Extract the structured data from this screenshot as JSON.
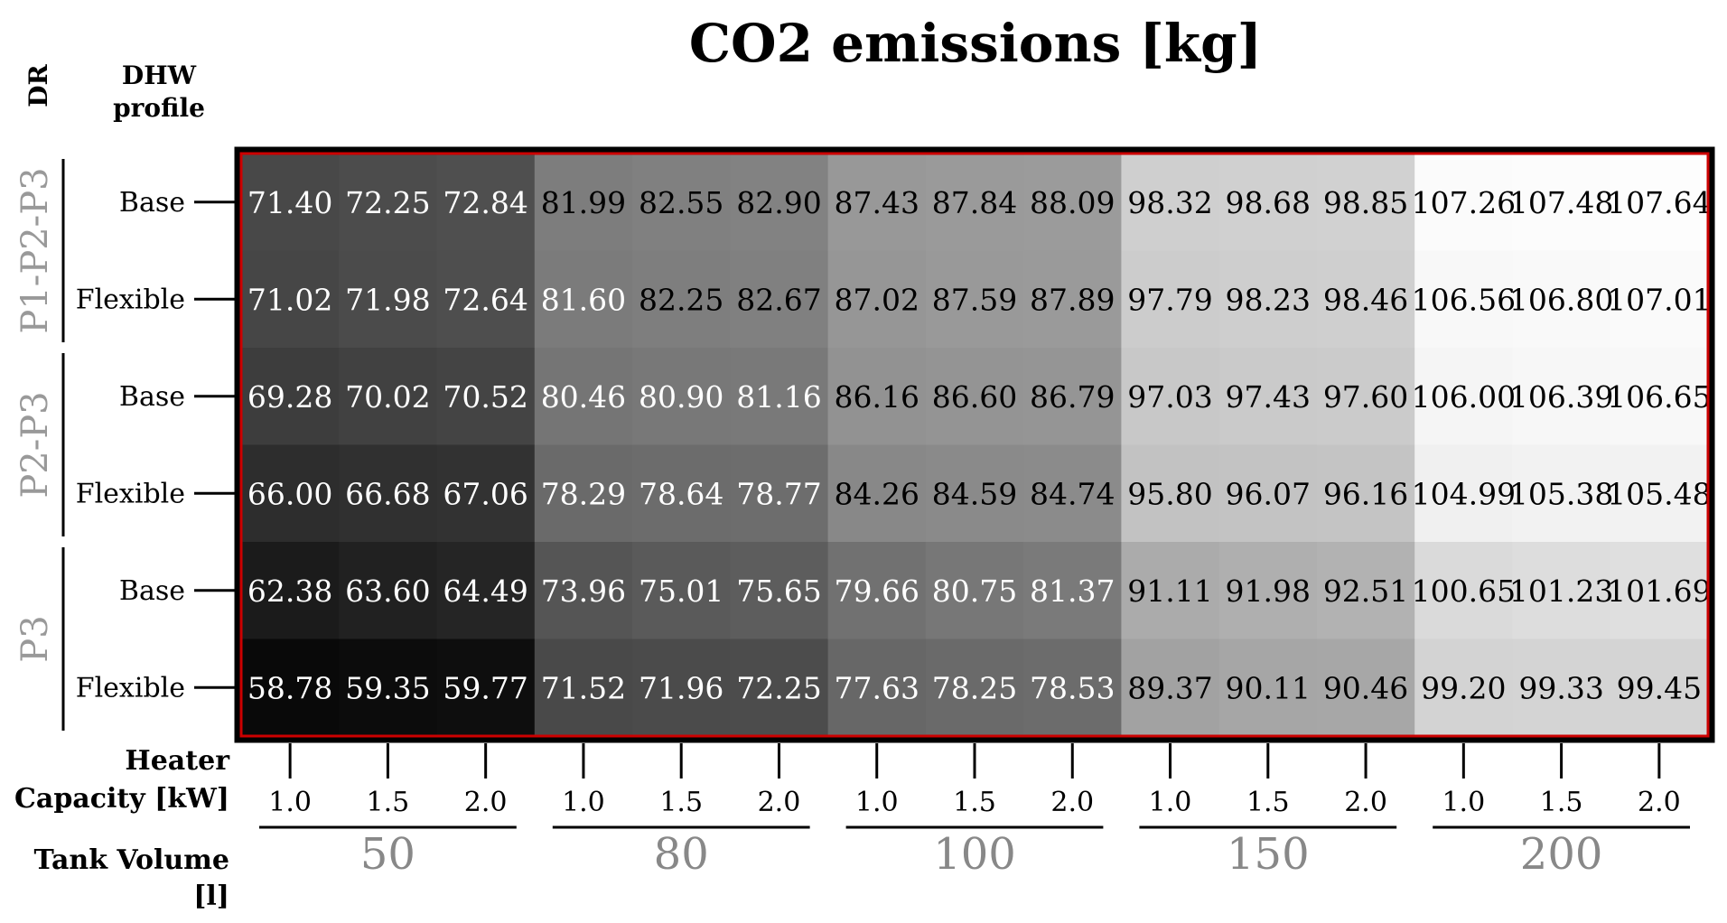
{
  "chart_data": {
    "type": "heatmap",
    "title": "CO2 emissions [kg]",
    "header_dr": "DR",
    "header_dhw": "DHW\nprofile",
    "xlabel_capacity": "Heater\nCapacity [kW]",
    "xlabel_tank": "Tank Volume\n[l]",
    "dr_groups": [
      {
        "name": "P1-P2-P3",
        "rows": [
          "Base",
          "Flexible"
        ]
      },
      {
        "name": "P2-P3",
        "rows": [
          "Base",
          "Flexible"
        ]
      },
      {
        "name": "P3",
        "rows": [
          "Base",
          "Flexible"
        ]
      }
    ],
    "tank_volumes": [
      "50",
      "80",
      "100",
      "150",
      "200"
    ],
    "capacities": [
      "1.0",
      "1.5",
      "2.0"
    ],
    "values": [
      [
        71.4,
        72.25,
        72.84,
        81.99,
        82.55,
        82.9,
        87.43,
        87.84,
        88.09,
        98.32,
        98.68,
        98.85,
        107.26,
        107.48,
        107.64
      ],
      [
        71.02,
        71.98,
        72.64,
        81.6,
        82.25,
        82.67,
        87.02,
        87.59,
        87.89,
        97.79,
        98.23,
        98.46,
        106.56,
        106.8,
        107.01
      ],
      [
        69.28,
        70.02,
        70.52,
        80.46,
        80.9,
        81.16,
        86.16,
        86.6,
        86.79,
        97.03,
        97.43,
        97.6,
        106.0,
        106.39,
        106.65
      ],
      [
        66.0,
        66.68,
        67.06,
        78.29,
        78.64,
        78.77,
        84.26,
        84.59,
        84.74,
        95.8,
        96.07,
        96.16,
        104.99,
        105.38,
        105.48
      ],
      [
        62.38,
        63.6,
        64.49,
        73.96,
        75.01,
        75.65,
        79.66,
        80.75,
        81.37,
        91.11,
        91.98,
        92.51,
        100.65,
        101.23,
        101.69
      ],
      [
        58.78,
        59.35,
        59.77,
        71.52,
        71.96,
        72.25,
        77.63,
        78.25,
        78.53,
        89.37,
        90.11,
        90.46,
        99.2,
        99.33,
        99.45
      ]
    ],
    "color_scale": {
      "low": "#000000",
      "high": "#ffffff",
      "min": 57,
      "max": 108
    },
    "highlight_border_color": "#cc0000"
  }
}
